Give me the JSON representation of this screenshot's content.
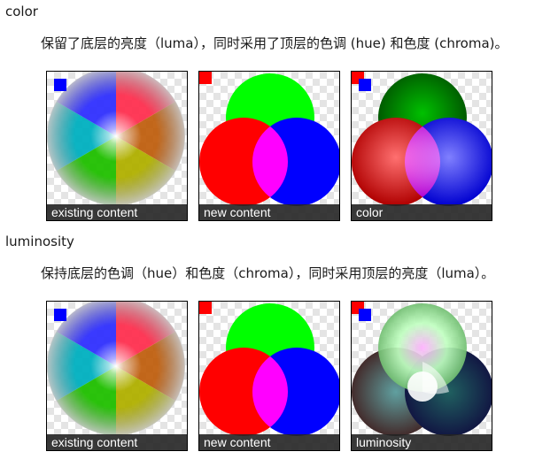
{
  "sections": [
    {
      "heading": "color",
      "description": "保留了底层的亮度（luma），同时采用了顶层的色调 (hue) 和色度 (chroma)。",
      "figures": [
        {
          "caption": "existing content"
        },
        {
          "caption": "new content"
        },
        {
          "caption": "color"
        }
      ]
    },
    {
      "heading": "luminosity",
      "description": "保持底层的色调（hue）和色度（chroma），同时采用顶层的亮度（luma）。",
      "figures": [
        {
          "caption": "existing content"
        },
        {
          "caption": "new content"
        },
        {
          "caption": "luminosity"
        }
      ]
    }
  ],
  "colors": {
    "red": "#ff0000",
    "green": "#00ff00",
    "blue": "#0000ff",
    "blue_square": "#0000ff",
    "red_square": "#ff0000",
    "caption_bg": "#232323"
  }
}
